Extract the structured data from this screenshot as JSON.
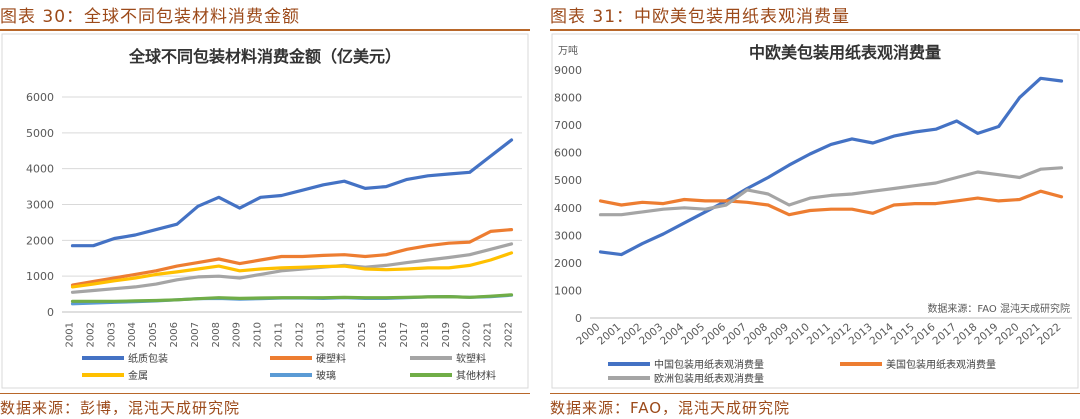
{
  "left_figure": {
    "caption": "图表 30：全球不同包装材料消费金额",
    "source": "数据来源：彭博，混沌天成研究院",
    "chart_data": {
      "type": "line",
      "title": "全球不同包装材料消费金额（亿美元）",
      "xlabel": "",
      "ylabel": "",
      "ylim": [
        0,
        6000
      ],
      "yticks": [
        0,
        1000,
        2000,
        3000,
        4000,
        5000,
        6000
      ],
      "grid": true,
      "legend_position": "bottom",
      "categories": [
        "2001",
        "2002",
        "2003",
        "2004",
        "2005",
        "2006",
        "2007",
        "2008",
        "2009",
        "2010",
        "2011",
        "2012",
        "2013",
        "2014",
        "2015",
        "2016",
        "2017",
        "2018",
        "2019",
        "2020",
        "2021",
        "2022"
      ],
      "series": [
        {
          "name": "纸质包装",
          "color": "#4472c4",
          "values": [
            1850,
            1850,
            2050,
            2150,
            2300,
            2450,
            2950,
            3200,
            2900,
            3200,
            3250,
            3400,
            3550,
            3650,
            3450,
            3500,
            3700,
            3800,
            3850,
            3900,
            4350,
            4800
          ]
        },
        {
          "name": "硬塑料",
          "color": "#ed7d31",
          "values": [
            750,
            850,
            950,
            1050,
            1150,
            1280,
            1380,
            1480,
            1350,
            1450,
            1550,
            1550,
            1580,
            1600,
            1550,
            1600,
            1750,
            1850,
            1920,
            1950,
            2250,
            2300
          ]
        },
        {
          "name": "软塑料",
          "color": "#a5a5a5",
          "values": [
            550,
            600,
            650,
            700,
            780,
            900,
            980,
            1000,
            950,
            1050,
            1150,
            1200,
            1250,
            1300,
            1250,
            1300,
            1380,
            1450,
            1520,
            1600,
            1750,
            1900
          ]
        },
        {
          "name": "金属",
          "color": "#ffc000",
          "values": [
            700,
            780,
            870,
            950,
            1050,
            1120,
            1200,
            1280,
            1150,
            1200,
            1230,
            1250,
            1270,
            1280,
            1200,
            1180,
            1200,
            1230,
            1230,
            1300,
            1450,
            1650
          ]
        },
        {
          "name": "玻璃",
          "color": "#5b9bd5",
          "values": [
            230,
            250,
            270,
            290,
            310,
            340,
            370,
            380,
            360,
            370,
            390,
            390,
            380,
            400,
            380,
            380,
            400,
            420,
            430,
            410,
            430,
            470
          ]
        },
        {
          "name": "其他材料",
          "color": "#70ad47",
          "values": [
            300,
            300,
            300,
            310,
            320,
            340,
            370,
            400,
            380,
            390,
            400,
            400,
            400,
            410,
            400,
            400,
            410,
            420,
            430,
            410,
            440,
            480
          ]
        }
      ]
    }
  },
  "right_figure": {
    "caption": "图表 31：中欧美包装用纸表观消费量",
    "source": "数据来源：FAO，混沌天成研究院",
    "chart_data": {
      "type": "line",
      "title": "中欧美包装用纸表观消费量",
      "unit_label": "万吨",
      "inner_note": "数据来源：FAO 混沌天成研究院",
      "xlabel": "",
      "ylabel": "",
      "ylim": [
        0,
        9000
      ],
      "yticks": [
        0,
        1000,
        2000,
        3000,
        4000,
        5000,
        6000,
        7000,
        8000,
        9000
      ],
      "grid": false,
      "legend_position": "bottom",
      "categories": [
        "2000",
        "2001",
        "2002",
        "2003",
        "2004",
        "2005",
        "2006",
        "2007",
        "2008",
        "2009",
        "2010",
        "2011",
        "2012",
        "2013",
        "2014",
        "2015",
        "2016",
        "2017",
        "2018",
        "2019",
        "2020",
        "2021",
        "2022"
      ],
      "series": [
        {
          "name": "中国包装用纸表观消费量",
          "color": "#4472c4",
          "values": [
            2400,
            2300,
            2700,
            3050,
            3450,
            3850,
            4250,
            4700,
            5100,
            5550,
            5950,
            6300,
            6500,
            6350,
            6600,
            6750,
            6850,
            7150,
            6700,
            6950,
            8000,
            8700,
            8600
          ]
        },
        {
          "name": "美国包装用纸表观消费量",
          "color": "#ed7d31",
          "values": [
            4250,
            4100,
            4200,
            4150,
            4300,
            4250,
            4250,
            4200,
            4100,
            3750,
            3900,
            3950,
            3950,
            3800,
            4100,
            4150,
            4150,
            4250,
            4350,
            4250,
            4300,
            4600,
            4400
          ]
        },
        {
          "name": "欧洲包装用纸表观消费量",
          "color": "#a5a5a5",
          "values": [
            3750,
            3750,
            3850,
            3950,
            4000,
            3950,
            4100,
            4650,
            4500,
            4100,
            4350,
            4450,
            4500,
            4600,
            4700,
            4800,
            4900,
            5100,
            5300,
            5200,
            5100,
            5400,
            5450
          ]
        }
      ]
    }
  }
}
